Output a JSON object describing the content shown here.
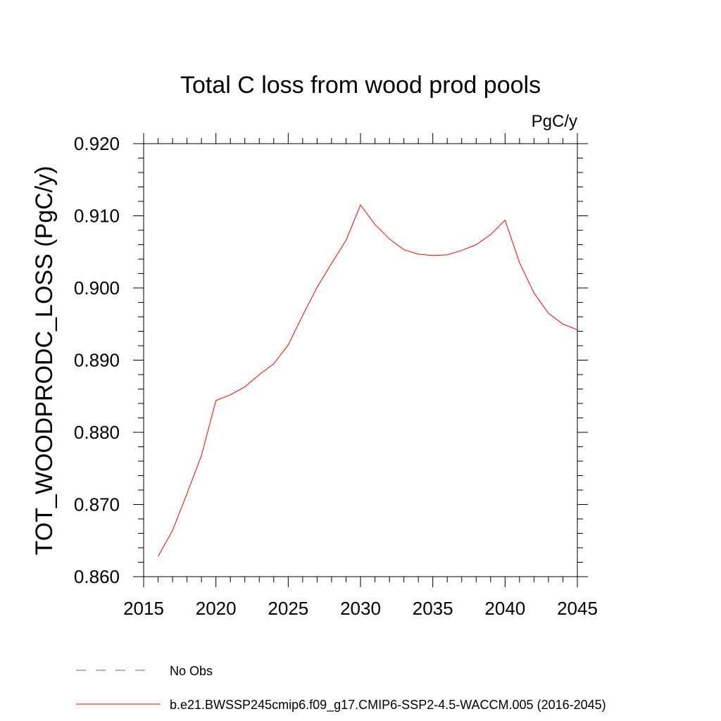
{
  "chart_data": {
    "type": "line",
    "title": "Total C loss from wood prod pools",
    "units": "PgC/y",
    "ylabel": "TOT_WOODPRODC_LOSS  (PgC/y)",
    "xlabel": "",
    "xlim": [
      2015,
      2045
    ],
    "ylim": [
      0.86,
      0.92
    ],
    "xticks": [
      2015,
      2020,
      2025,
      2030,
      2035,
      2040,
      2045
    ],
    "xtick_labels": [
      "2015",
      "2020",
      "2025",
      "2030",
      "2035",
      "2040",
      "2045"
    ],
    "yticks": [
      0.86,
      0.87,
      0.88,
      0.89,
      0.9,
      0.91,
      0.92
    ],
    "ytick_labels": [
      "0.860",
      "0.870",
      "0.880",
      "0.890",
      "0.900",
      "0.910",
      "0.920"
    ],
    "grid": false,
    "legend_position": "bottom-left",
    "series": [
      {
        "name": "b.e21.BWSSP245cmip6.f09_g17.CMIP6-SSP2-4.5-WACCM.005 (2016-2045)",
        "color": "#ff0000",
        "style": "solid",
        "x": [
          2016,
          2017,
          2018,
          2019,
          2020,
          2021,
          2022,
          2023,
          2024,
          2025,
          2026,
          2027,
          2028,
          2029,
          2030,
          2031,
          2032,
          2033,
          2034,
          2035,
          2036,
          2037,
          2038,
          2039,
          2040,
          2041,
          2042,
          2043,
          2044,
          2045
        ],
        "y": [
          0.8628,
          0.8664,
          0.8715,
          0.8768,
          0.8844,
          0.8852,
          0.8863,
          0.888,
          0.8895,
          0.8921,
          0.8962,
          0.9001,
          0.9034,
          0.9066,
          0.9115,
          0.9088,
          0.9068,
          0.9053,
          0.9047,
          0.9045,
          0.9046,
          0.9052,
          0.906,
          0.9074,
          0.9094,
          0.9035,
          0.8993,
          0.8965,
          0.895,
          0.8942
        ]
      },
      {
        "name": "No Obs",
        "color": "#6a5acd",
        "style": "dashed",
        "x": [],
        "y": []
      }
    ]
  }
}
